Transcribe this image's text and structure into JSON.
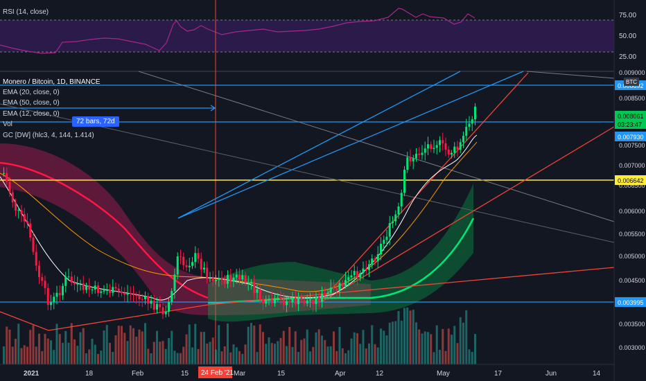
{
  "rsi_pane": {
    "label": "RSI (14, close)",
    "levels": [
      70,
      30
    ],
    "axis_ticks": [
      "75.00",
      "50.00",
      "25.00"
    ],
    "colors": {
      "line": "#a9278d",
      "band": "#7e57c2"
    }
  },
  "legend": {
    "title": "Monero / Bitcoin, 1D, BINANCE",
    "lines": [
      "EMA (20, close, 0)",
      "EMA (50, close, 0)",
      "EMA (12, close, 0)",
      "Vol",
      "GC [DW] (hlc3, 4, 144, 1.414)"
    ]
  },
  "measure_tag": "72 bars, 72d",
  "chart_data": {
    "type": "candlestick",
    "symbol": "Monero / Bitcoin, 1D, BINANCE",
    "currency_badge": "BTC",
    "price_axis_ticks": [
      "0.009000",
      "0.008500",
      "0.007500",
      "0.007000",
      "0.006500",
      "0.006000",
      "0.005500",
      "0.005000",
      "0.004500",
      "0.003500",
      "0.003000"
    ],
    "price_axis_labels": [
      "0.008692",
      "0.008061",
      "03:23:47",
      "0.007930",
      "0.006642",
      "0.003995"
    ],
    "time_axis_ticks": [
      "2021",
      "18",
      "Feb",
      "15",
      "24 Feb '21",
      "Mar",
      "15",
      "Apr",
      "12",
      "May",
      "17",
      "Jun",
      "14"
    ],
    "horizontal_levels": [
      {
        "price": "0.008692",
        "color": "#2196f3"
      },
      {
        "price": "0.007930",
        "color": "#2196f3"
      },
      {
        "price": "0.006642",
        "color": "#ffeb3b"
      },
      {
        "price": "0.003995",
        "color": "#2196f3"
      }
    ],
    "last_price": "0.008061",
    "colors": {
      "up": "#00e676",
      "down": "#ff1744",
      "ema_white": "#ffffff",
      "ema_orange": "#ff9800"
    }
  }
}
